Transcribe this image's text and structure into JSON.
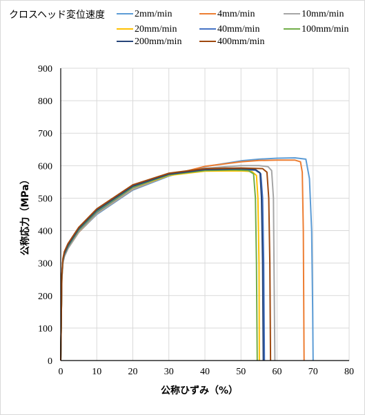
{
  "chart_data": {
    "type": "line",
    "legend_title": "クロスヘッド変位速度",
    "xlabel": "公称ひずみ（%）",
    "ylabel": "公称応力（MPa）",
    "xlim": [
      0,
      80
    ],
    "ylim": [
      0,
      900
    ],
    "x_ticks": [
      "0",
      "10",
      "20",
      "30",
      "40",
      "50",
      "60",
      "70",
      "80"
    ],
    "y_ticks": [
      "0",
      "100",
      "200",
      "300",
      "400",
      "500",
      "600",
      "700",
      "800",
      "900"
    ],
    "grid": true,
    "legend_position": "top",
    "series": [
      {
        "name": "2mm/min",
        "color": "#5B9BD5",
        "x": [
          0,
          0.3,
          0.6,
          1,
          2,
          5,
          10,
          20,
          30,
          40,
          50,
          55,
          60,
          65,
          68,
          69,
          69.6,
          69.9,
          70
        ],
        "y": [
          0,
          250,
          300,
          320,
          345,
          395,
          450,
          525,
          568,
          597,
          615,
          620,
          623,
          624,
          620,
          560,
          400,
          150,
          0
        ]
      },
      {
        "name": "4mm/min",
        "color": "#ED7D31",
        "x": [
          0,
          0.3,
          0.6,
          1,
          2,
          5,
          10,
          20,
          30,
          40,
          50,
          55,
          60,
          65,
          66.5,
          67,
          67.3,
          67.5
        ],
        "y": [
          0,
          250,
          300,
          320,
          345,
          395,
          452,
          527,
          570,
          598,
          612,
          616,
          617,
          617,
          612,
          580,
          400,
          0
        ]
      },
      {
        "name": "10mm/min",
        "color": "#A5A5A5",
        "x": [
          0,
          0.3,
          0.6,
          1,
          2,
          5,
          10,
          20,
          30,
          40,
          50,
          55,
          57.5,
          58.5,
          59,
          59.2,
          59.4
        ],
        "y": [
          0,
          250,
          300,
          320,
          345,
          396,
          452,
          528,
          570,
          592,
          600,
          600,
          597,
          585,
          500,
          250,
          0
        ]
      },
      {
        "name": "20mm/min",
        "color": "#FFC000",
        "x": [
          0,
          0.3,
          0.6,
          1,
          2,
          5,
          10,
          20,
          30,
          40,
          50,
          53,
          54.3,
          54.7,
          55,
          55.1
        ],
        "y": [
          0,
          255,
          305,
          325,
          350,
          400,
          456,
          532,
          570,
          583,
          584,
          582,
          570,
          500,
          300,
          0
        ]
      },
      {
        "name": "40mm/min",
        "color": "#4472C4",
        "x": [
          0,
          0.3,
          0.6,
          1,
          2,
          5,
          10,
          20,
          30,
          40,
          50,
          54,
          55.5,
          56,
          56.3,
          56.5
        ],
        "y": [
          0,
          255,
          305,
          325,
          350,
          401,
          457,
          533,
          572,
          586,
          588,
          586,
          575,
          500,
          300,
          0
        ]
      },
      {
        "name": "100mm/min",
        "color": "#70AD47",
        "x": [
          0,
          0.3,
          0.6,
          1,
          2,
          5,
          10,
          20,
          30,
          40,
          48,
          52,
          53.5,
          54,
          54.3,
          54.5
        ],
        "y": [
          0,
          258,
          308,
          328,
          352,
          403,
          460,
          534,
          572,
          585,
          587,
          585,
          575,
          500,
          300,
          0
        ]
      },
      {
        "name": "200mm/min",
        "color": "#264478",
        "x": [
          0,
          0.3,
          0.6,
          1,
          2,
          5,
          10,
          20,
          30,
          40,
          50,
          54,
          55.3,
          55.7,
          56,
          56.2
        ],
        "y": [
          0,
          260,
          310,
          330,
          355,
          406,
          463,
          537,
          574,
          588,
          590,
          588,
          578,
          500,
          300,
          0
        ]
      },
      {
        "name": "400mm/min",
        "color": "#9E480E",
        "x": [
          0,
          0.3,
          0.6,
          1,
          2,
          5,
          10,
          20,
          30,
          40,
          50,
          56,
          57.2,
          57.7,
          58,
          58.2
        ],
        "y": [
          0,
          262,
          313,
          335,
          360,
          410,
          467,
          541,
          577,
          591,
          593,
          591,
          580,
          500,
          300,
          0
        ]
      }
    ]
  }
}
